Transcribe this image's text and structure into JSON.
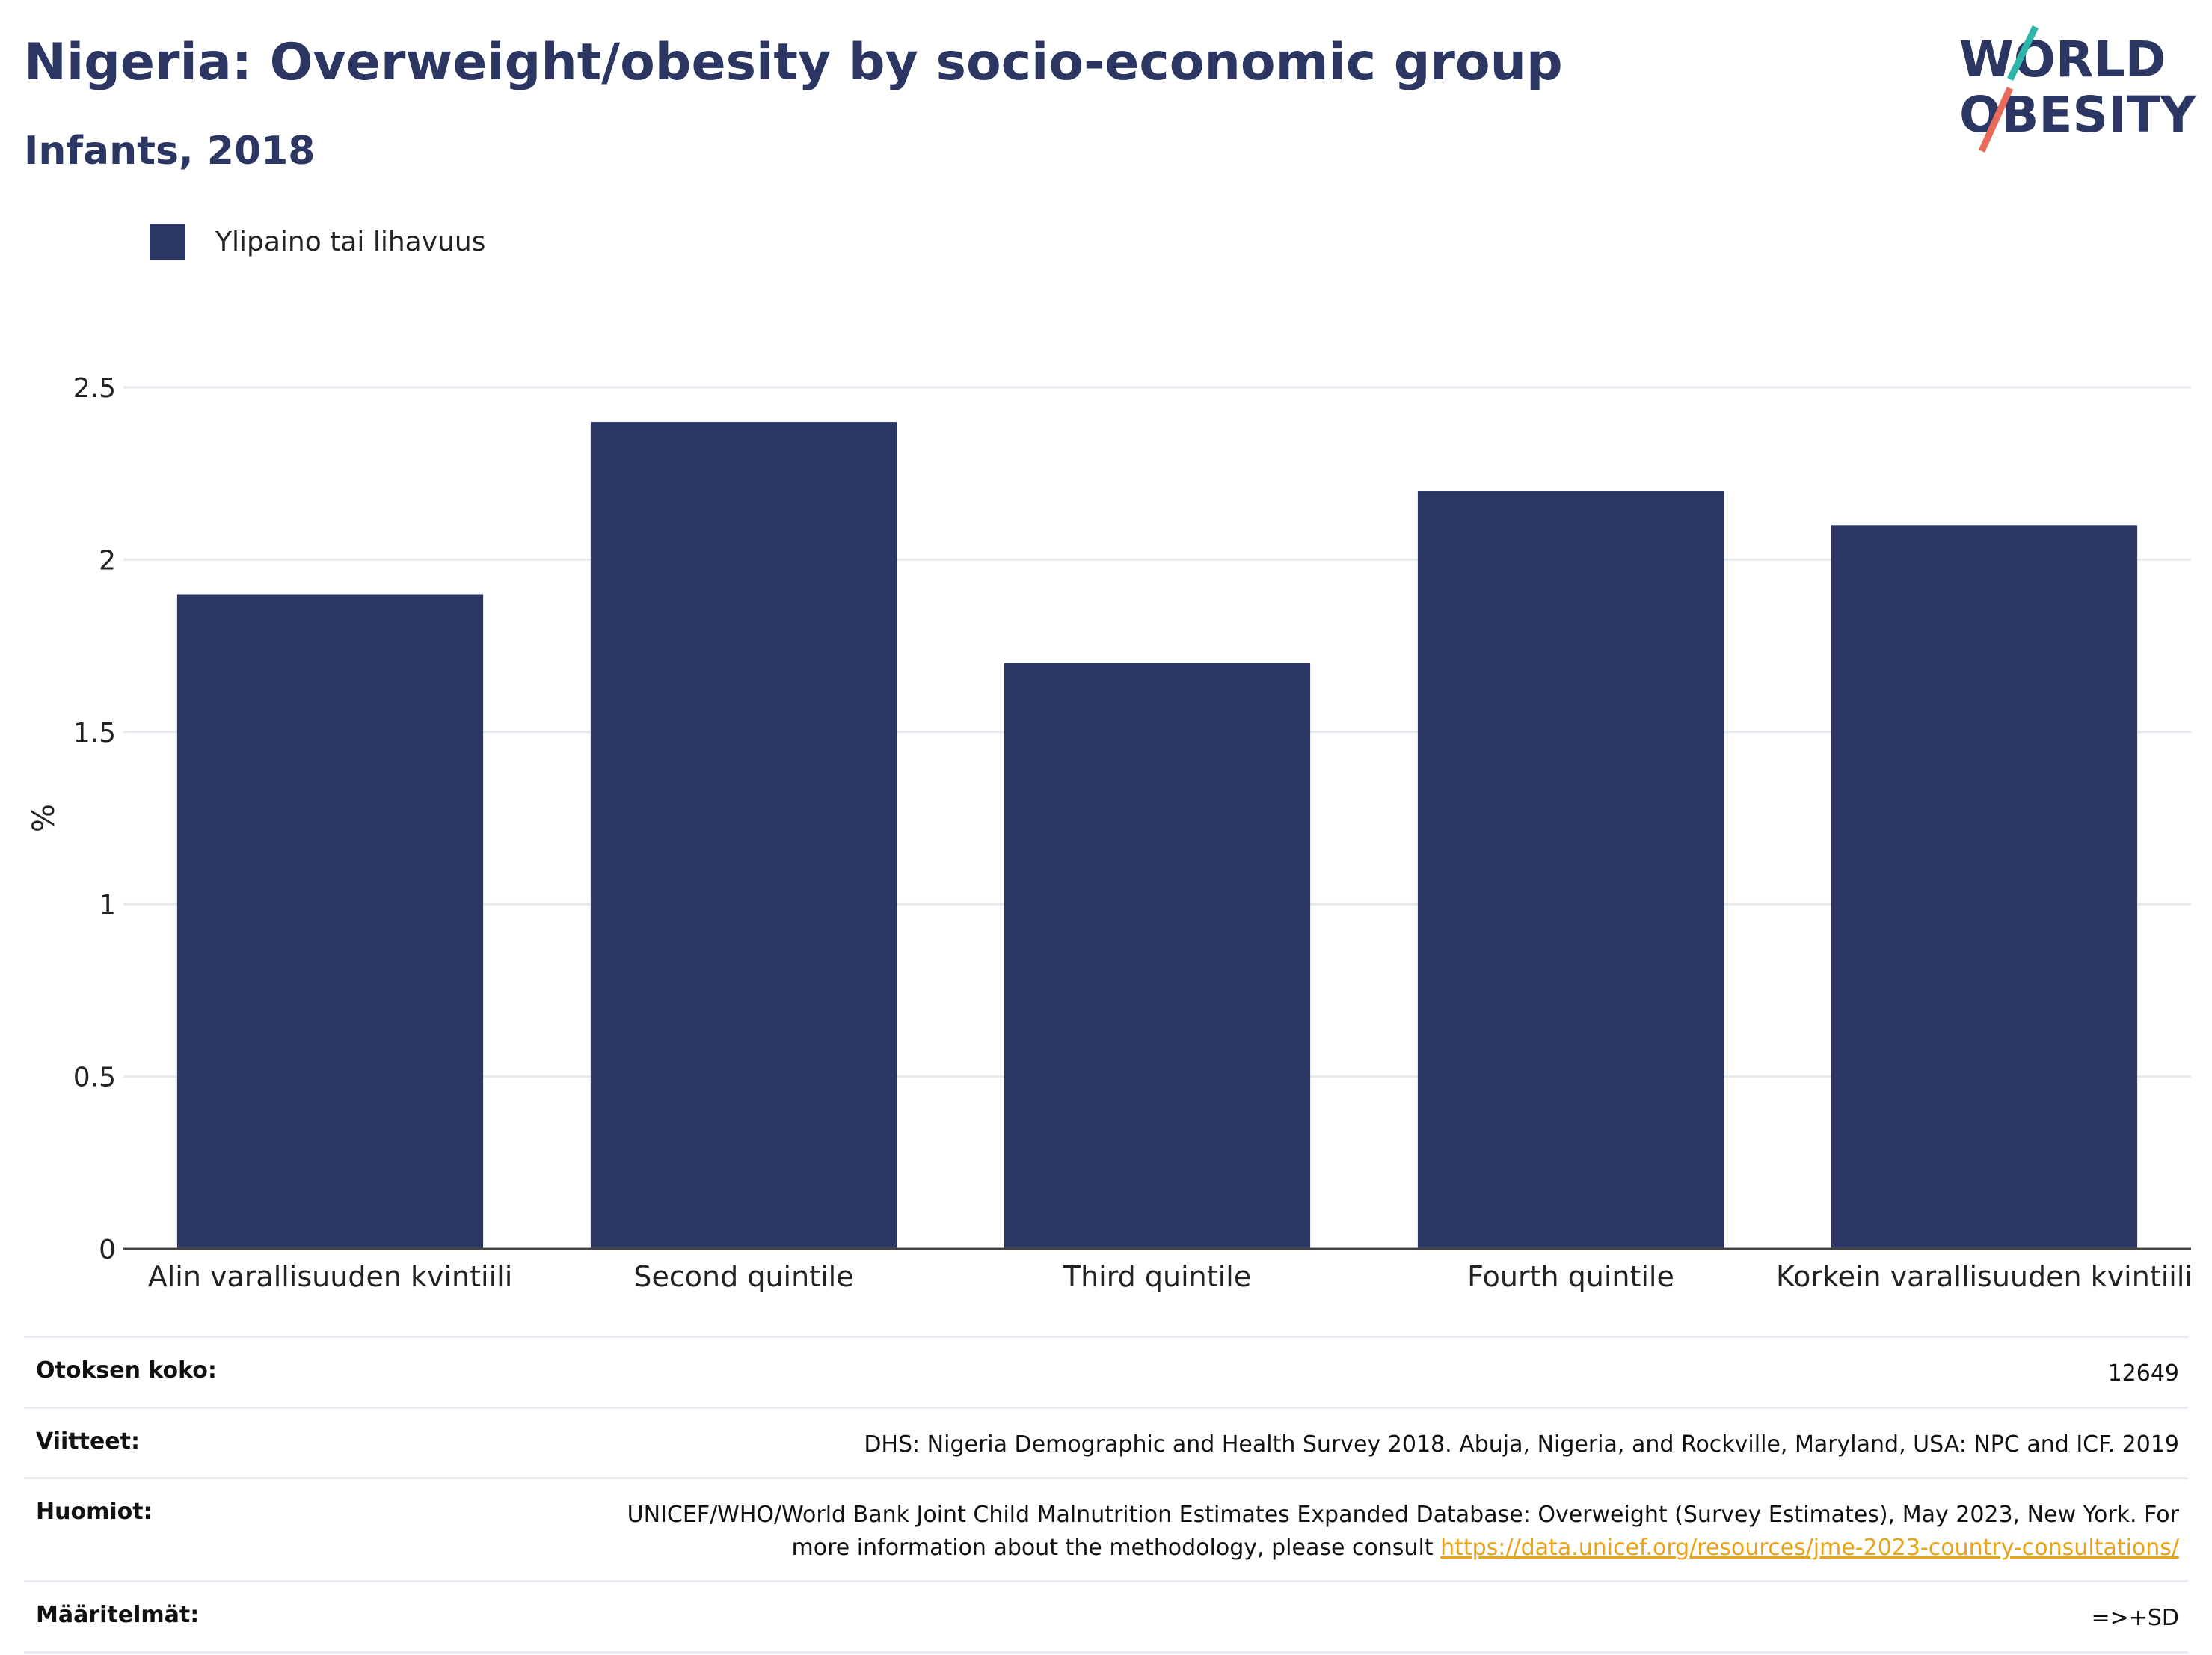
{
  "header": {
    "title": "Nigeria: Overweight/obesity by socio-economic group",
    "subtitle": "Infants, 2018"
  },
  "logo": {
    "line1": "WORLD",
    "line2": "OBESITY"
  },
  "legend": {
    "label": "Ylipaino tai lihavuus",
    "color": "#2b3663"
  },
  "chart_data": {
    "type": "bar",
    "title": "Nigeria: Overweight/obesity by socio-economic group",
    "subtitle": "Infants, 2018",
    "categories": [
      "Alin varallisuuden kvintiili",
      "Second quintile",
      "Third quintile",
      "Fourth quintile",
      "Korkein varallisuuden kvintiili"
    ],
    "series": [
      {
        "name": "Ylipaino tai lihavuus",
        "values": [
          1.9,
          2.4,
          1.7,
          2.2,
          2.1
        ],
        "color": "#2b3663"
      }
    ],
    "ylabel": "%",
    "xlabel": "",
    "ylim": [
      0,
      2.5
    ],
    "yticks": [
      "0",
      "0.5",
      "1",
      "1.5",
      "2",
      "2.5"
    ],
    "grid": true,
    "legend_position": "top-left"
  },
  "info": {
    "sample_size_label": "Otoksen koko:",
    "sample_size_value": "12649",
    "references_label": "Viitteet:",
    "references_value": "DHS: Nigeria Demographic and Health Survey 2018. Abuja, Nigeria, and Rockville, Maryland, USA: NPC and ICF. 2019",
    "notes_label": "Huomiot:",
    "notes_text": "UNICEF/WHO/World Bank Joint Child Malnutrition Estimates Expanded Database: Overweight (Survey Estimates), May 2023, New York. For more information about the methodology, please consult ",
    "notes_link": "https://data.unicef.org/resources/jme-2023-country-consultations/",
    "definitions_label": "Määritelmät:",
    "definitions_value": "=>+SD"
  }
}
